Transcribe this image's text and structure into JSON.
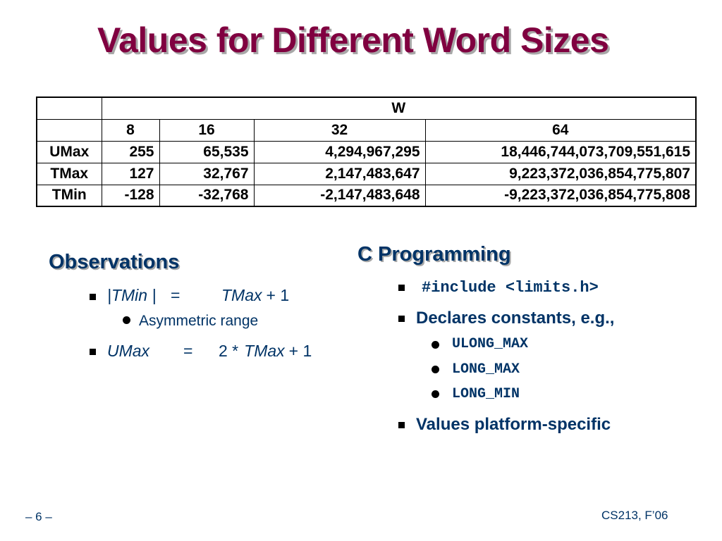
{
  "slide": {
    "title": "Values for Different Word Sizes",
    "page_number": "– 6 –",
    "course": "CS213, F’06"
  },
  "table": {
    "group_header": "W",
    "columns": [
      "8",
      "16",
      "32",
      "64"
    ],
    "rows": [
      {
        "label": "UMax",
        "values": [
          "255",
          "65,535",
          "4,294,967,295",
          "18,446,744,073,709,551,615"
        ]
      },
      {
        "label": "TMax",
        "values": [
          "127",
          "32,767",
          "2,147,483,647",
          "9,223,372,036,854,775,807"
        ]
      },
      {
        "label": "TMin",
        "values": [
          "-128",
          "-32,768",
          "-2,147,483,648",
          "-9,223,372,036,854,775,808"
        ]
      }
    ]
  },
  "observations": {
    "heading": "Observations",
    "item1": {
      "lhs": "|TMin |",
      "eq": "=",
      "rhs_var": "TMax",
      "rhs_rest": "+ 1"
    },
    "item1_sub": "Asymmetric range",
    "item2": {
      "lhs": "UMax",
      "eq": "=",
      "rhs_num": "2 *",
      "rhs_var": "TMax",
      "rhs_rest": "+ 1"
    }
  },
  "c_programming": {
    "heading": "C Programming",
    "include": "#include <limits.h>",
    "declares": "Declares constants, e.g.,",
    "constants": [
      "ULONG_MAX",
      "LONG_MAX",
      "LONG_MIN"
    ],
    "platform": "Values platform-specific"
  }
}
